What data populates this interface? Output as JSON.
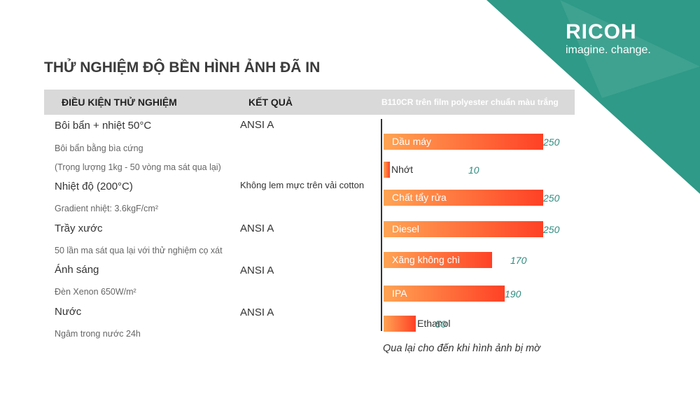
{
  "brand": {
    "name": "RICOH",
    "tagline": "imagine. change.",
    "corner_color": "#2e9a87"
  },
  "title": "THỬ NGHIỆM ĐỘ BỀN HÌNH ẢNH ĐÃ IN",
  "table": {
    "headers": [
      "ĐIỀU KIỆN THỬ NGHIỆM",
      "KẾT QUẢ",
      "B110CR trên film polyester chuẩn màu trắng"
    ],
    "rows": [
      {
        "condition": "Bôi bẩn + nhiệt 50°C",
        "details": [
          "Bôi bẩn bằng bìa cứng",
          "(Trọng lượng 1kg - 50 vòng ma sát qua lại)"
        ],
        "result": "ANSI A"
      },
      {
        "condition": "Nhiệt độ (200°C)",
        "details": [
          "Gradient nhiệt: 3.6kgF/cm²"
        ],
        "result": "Không lem mực trên vải cotton"
      },
      {
        "condition": "Trầy xước",
        "details": [
          "50 lần ma sát qua lại với thử nghiệm cọ xát"
        ],
        "result": "ANSI A"
      },
      {
        "condition": "Ánh sáng",
        "details": [
          "Đèn Xenon 650W/m²"
        ],
        "result": "ANSI A"
      },
      {
        "condition": "Nước",
        "details": [
          "Ngâm trong nước 24h"
        ],
        "result": "ANSI A"
      }
    ]
  },
  "chart_data": {
    "type": "bar",
    "orientation": "horizontal",
    "title": "B110CR trên film polyester chuẩn màu trắng",
    "categories": [
      "Dầu máy",
      "Nhớt",
      "Chất tẩy rửa",
      "Diesel",
      "Xăng không chì",
      "IPA",
      "Ethanol"
    ],
    "values": [
      250,
      10,
      250,
      250,
      170,
      190,
      50
    ],
    "xlim": [
      0,
      250
    ],
    "caption": "Qua lại cho đến khi hình ảnh bị mờ",
    "bar_gradient": [
      "#ffa454",
      "#ff4126"
    ],
    "value_color": "#2f8c80"
  }
}
